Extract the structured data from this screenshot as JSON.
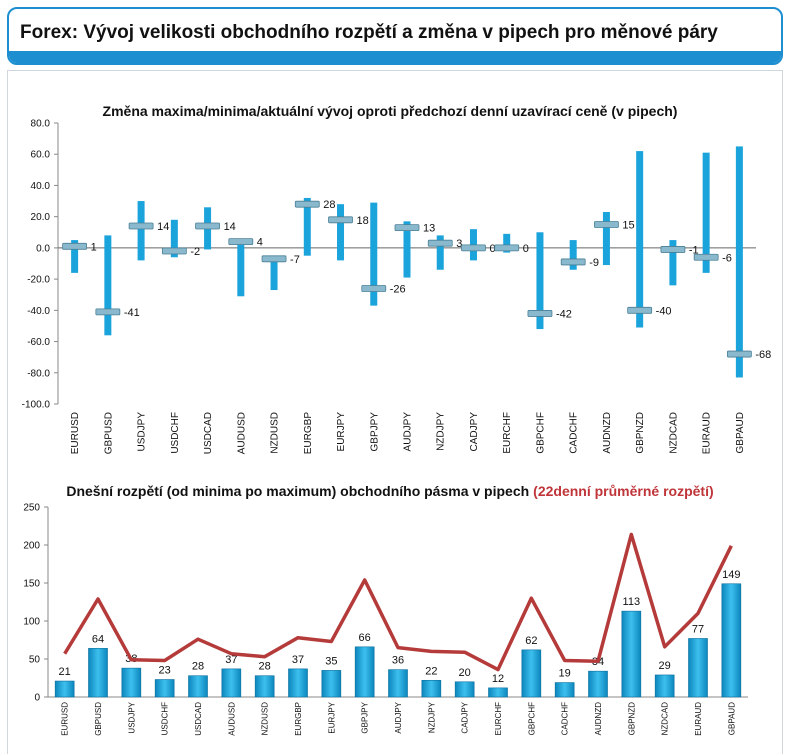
{
  "header": {
    "title": "Forex: Vývoj velikosti obchodního rozpětí a změna v pipech pro měnové páry"
  },
  "colors": {
    "accent": "#1d8fd0",
    "bar": "#1ba3dc",
    "marker": "#7fb3c8",
    "line": "#b53a3a",
    "secondary_title": "#c0353a"
  },
  "chart_data": [
    {
      "type": "bar",
      "title": "Změna maxima/minima/aktuální vývoj oproti předchozí denní uzavírací ceně (v pipech)",
      "categories": [
        "EURUSD",
        "GBPUSD",
        "USDJPY",
        "USDCHF",
        "USDCAD",
        "AUDUSD",
        "NZDUSD",
        "EURGBP",
        "EURJPY",
        "GBPJPY",
        "AUDJPY",
        "NZDJPY",
        "CADJPY",
        "EURCHF",
        "GBPCHF",
        "CADCHF",
        "AUDNZD",
        "GBPNZD",
        "NZDCAD",
        "EURAUD",
        "GBPAUD"
      ],
      "series": [
        {
          "name": "max",
          "values": [
            5,
            8,
            30,
            18,
            26,
            5,
            -5,
            32,
            28,
            29,
            17,
            8,
            12,
            9,
            10,
            5,
            23,
            62,
            5,
            61,
            65
          ]
        },
        {
          "name": "min",
          "values": [
            -16,
            -56,
            -8,
            -6,
            -1,
            -31,
            -27,
            -5,
            -8,
            -37,
            -19,
            -14,
            -8,
            -3,
            -52,
            -14,
            -11,
            -51,
            -24,
            -16,
            -83
          ]
        },
        {
          "name": "current",
          "values": [
            1,
            -41,
            14,
            -2,
            14,
            4,
            -7,
            28,
            18,
            -26,
            13,
            3,
            0,
            0,
            -42,
            -9,
            15,
            -40,
            -1,
            -6,
            -68
          ]
        }
      ],
      "data_labels": [
        "1",
        "-41",
        "14",
        "-2",
        "14",
        "4",
        "-7",
        "28",
        "18",
        "-26",
        "13",
        "3",
        "0",
        "0",
        "-42",
        "-9",
        "15",
        "-40",
        "-1",
        "-6",
        "-68"
      ],
      "ylim": [
        -100,
        80
      ],
      "yticks": [
        "80.0",
        "60.0",
        "40.0",
        "20.0",
        "0.0",
        "-20.0",
        "-40.0",
        "-60.0",
        "-80.0",
        "-100.0"
      ],
      "xlabel": "",
      "ylabel": "",
      "grid": false,
      "legend": "none"
    },
    {
      "type": "bar",
      "title": "Dnešní rozpětí (od minima po maximum) obchodního pásma v pipech",
      "title_highlight": "(22denní průměrné rozpětí)",
      "categories": [
        "EURUSD",
        "GBPUSD",
        "USDJPY",
        "USDCHF",
        "USDCAD",
        "AUDUSD",
        "NZDUSD",
        "EURGBP",
        "EURJPY",
        "GBPJPY",
        "AUDJPY",
        "NZDJPY",
        "CADJPY",
        "EURCHF",
        "GBPCHF",
        "CADCHF",
        "AUDNZD",
        "GBPNZD",
        "NZDCAD",
        "EURAUD",
        "GBPAUD"
      ],
      "series": [
        {
          "name": "Dnešní rozpětí",
          "values": [
            21,
            64,
            38,
            23,
            28,
            37,
            28,
            37,
            35,
            66,
            36,
            22,
            20,
            12,
            62,
            19,
            34,
            113,
            29,
            77,
            149
          ]
        },
        {
          "name": "22denní průměrné rozpětí",
          "values": [
            57,
            129,
            49,
            48,
            76,
            57,
            53,
            78,
            73,
            154,
            65,
            60,
            59,
            36,
            130,
            48,
            47,
            214,
            66,
            110,
            199
          ]
        }
      ],
      "data_labels": [
        "21",
        "64",
        "38",
        "23",
        "28",
        "37",
        "28",
        "37",
        "35",
        "66",
        "36",
        "22",
        "20",
        "12",
        "62",
        "19",
        "34",
        "113",
        "29",
        "77",
        "149"
      ],
      "ylim": [
        0,
        250
      ],
      "yticks": [
        "250",
        "200",
        "150",
        "100",
        "50",
        "0"
      ],
      "xlabel": "",
      "ylabel": "",
      "grid": false,
      "legend": "none"
    }
  ]
}
